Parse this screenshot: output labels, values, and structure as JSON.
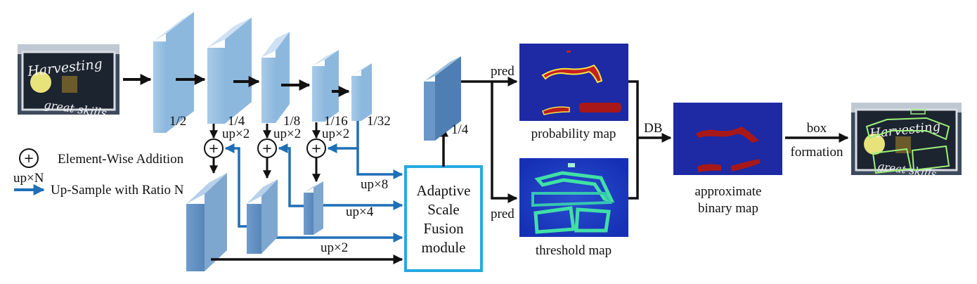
{
  "input": {
    "sign_line1": "Harvesting",
    "sign_line2": "great skills"
  },
  "backbone": {
    "scales": [
      "1/2",
      "1/4",
      "1/8",
      "1/16",
      "1/32"
    ]
  },
  "upsample": {
    "x2_a": "up×2",
    "x2_b": "up×2",
    "x2_c": "up×2",
    "x8": "up×8",
    "x4": "up×4",
    "x2_d": "up×2"
  },
  "asf": {
    "line1": "Adaptive",
    "line2": "Scale",
    "line3": "Fusion",
    "line4": "module"
  },
  "feature": {
    "scale": "1/4"
  },
  "pred": {
    "top": "pred",
    "bottom": "pred"
  },
  "maps": {
    "probability": "probability map",
    "threshold": "threshold map",
    "binary_line1": "approximate",
    "binary_line2": "binary map"
  },
  "db_label": "DB",
  "box": {
    "line1": "box",
    "line2": "formation"
  },
  "legend": {
    "addition_symbol": "+",
    "addition_label": "Element-Wise Addition",
    "up_symbol": "up×N",
    "up_label": "Up-Sample with Ratio N"
  },
  "colors": {
    "arrow_black": "#111111",
    "arrow_blue": "#1f6fb6",
    "asf_border": "#27a9e1",
    "feature_light": "#9cc3e4",
    "feature_dark": "#5f8fc0",
    "heatmap_bg": "#1d2aa3"
  }
}
